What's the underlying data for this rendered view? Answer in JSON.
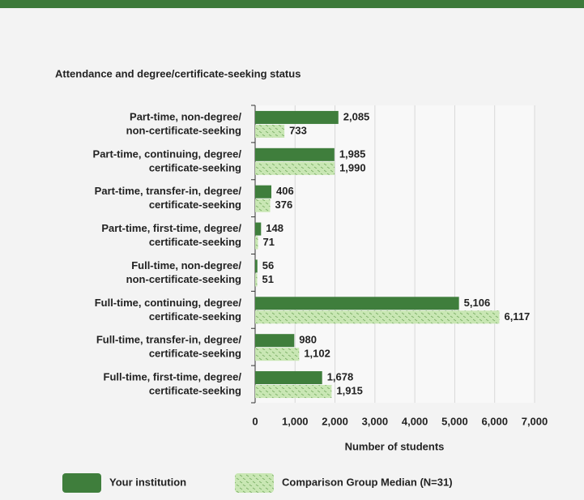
{
  "chart_data": {
    "type": "bar",
    "orientation": "horizontal",
    "title": "Attendance and degree/certificate-seeking status",
    "categories": [
      [
        "Part-time, non-degree/",
        "non-certificate-seeking"
      ],
      [
        "Part-time, continuing, degree/",
        "certificate-seeking"
      ],
      [
        "Part-time, transfer-in, degree/",
        "certificate-seeking"
      ],
      [
        "Part-time, first-time, degree/",
        "certificate-seeking"
      ],
      [
        "Full-time, non-degree/",
        "non-certificate-seeking"
      ],
      [
        "Full-time, continuing, degree/",
        "certificate-seeking"
      ],
      [
        "Full-time, transfer-in, degree/",
        "certificate-seeking"
      ],
      [
        "Full-time, first-time, degree/",
        "certificate-seeking"
      ]
    ],
    "series": [
      {
        "name": "Your institution",
        "color": "#3f7e3c",
        "values": [
          2085,
          1985,
          406,
          148,
          56,
          5106,
          980,
          1678
        ],
        "value_labels": [
          "2,085",
          "1,985",
          "406",
          "148",
          "56",
          "5,106",
          "980",
          "1,678"
        ]
      },
      {
        "name": "Comparison Group Median (N=31)",
        "color": "#c9e7b4",
        "values": [
          733,
          1990,
          376,
          71,
          51,
          6117,
          1102,
          1915
        ],
        "value_labels": [
          "733",
          "1,990",
          "376",
          "71",
          "51",
          "6,117",
          "1,102",
          "1,915"
        ]
      }
    ],
    "xlabel": "Number of students",
    "xlim": [
      0,
      7000
    ],
    "xticks": [
      0,
      {
        "value": 1000,
        "label": "1,000"
      },
      {
        "value": 2000,
        "label": "2,000"
      },
      {
        "value": 3000,
        "label": "3,000"
      },
      {
        "value": 4000,
        "label": "4,000"
      },
      {
        "value": 5000,
        "label": "5,000"
      },
      {
        "value": 6000,
        "label": "6,000"
      },
      {
        "value": 7000,
        "label": "7,000"
      }
    ],
    "grid": true
  }
}
